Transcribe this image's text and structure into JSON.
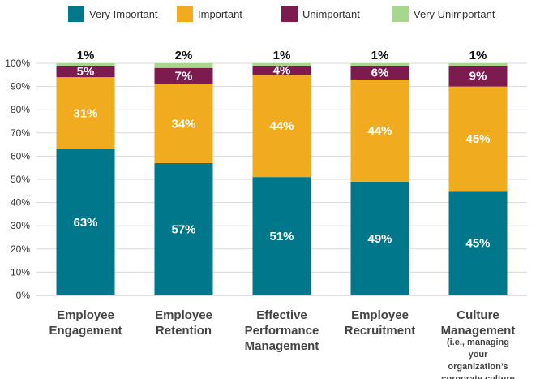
{
  "chart_data": {
    "type": "bar",
    "stacked": true,
    "categories": [
      [
        "Employee",
        "Engagement"
      ],
      [
        "Employee",
        "Retention"
      ],
      [
        "Effective",
        "Performance",
        "Management"
      ],
      [
        "Employee",
        "Recruitment"
      ],
      [
        "Culture",
        "Management"
      ]
    ],
    "category_notes": [
      "",
      "",
      "",
      "",
      "(i.e., managing your organization’s corporate culture"
    ],
    "series": [
      {
        "name": "Very Important",
        "color": "#00778B",
        "values": [
          63,
          57,
          51,
          49,
          45
        ]
      },
      {
        "name": "Important",
        "color": "#F1AB1E",
        "values": [
          31,
          34,
          44,
          44,
          45
        ]
      },
      {
        "name": "Unimportant",
        "color": "#7D1B4E",
        "values": [
          5,
          7,
          4,
          6,
          9
        ]
      },
      {
        "name": "Very Unimportant",
        "color": "#A6D78B",
        "values": [
          1,
          2,
          1,
          1,
          1
        ]
      }
    ],
    "ylim": [
      0,
      100
    ],
    "y_ticks": [
      "0%",
      "10%",
      "20%",
      "30%",
      "40%",
      "50%",
      "60%",
      "70%",
      "80%",
      "90%",
      "100%"
    ],
    "legend_position": "top",
    "grid": true,
    "label_suffix": "%"
  }
}
